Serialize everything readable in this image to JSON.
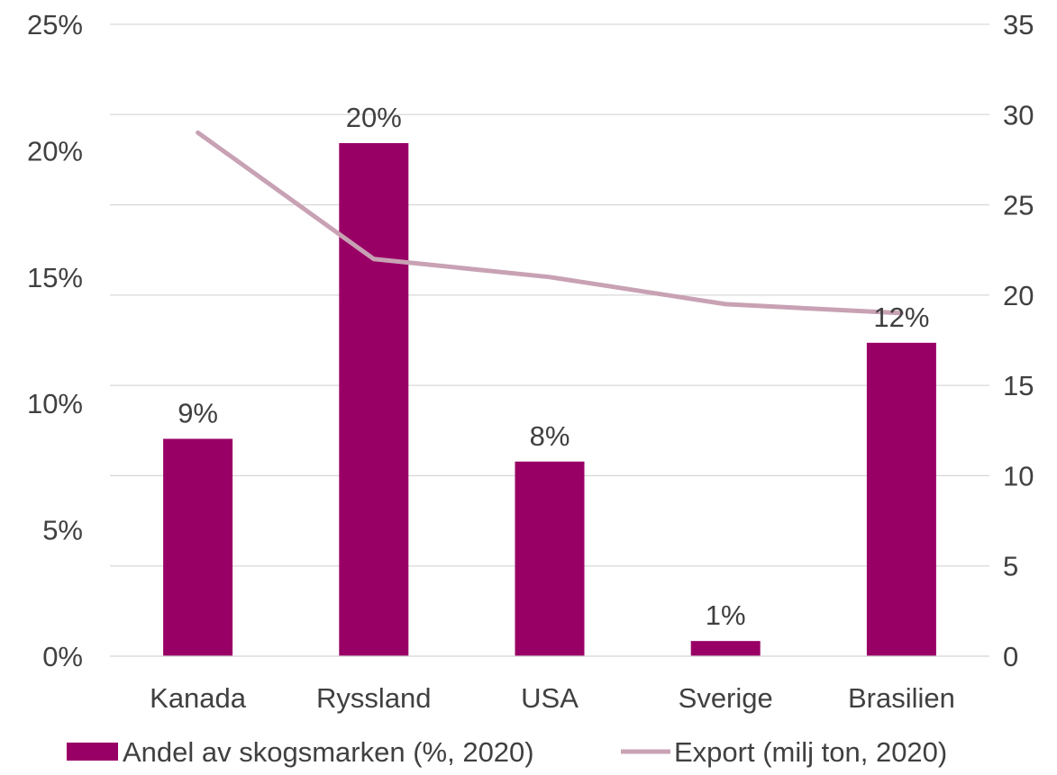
{
  "chart_data": {
    "type": "bar",
    "categories": [
      "Kanada",
      "Ryssland",
      "USA",
      "Sverige",
      "Brasilien"
    ],
    "series": [
      {
        "name": "Andel av skogsmarken (%, 2020)",
        "kind": "bar",
        "axis": "left",
        "values": [
          8.6,
          20.3,
          7.7,
          0.6,
          12.4
        ],
        "data_labels": [
          "9%",
          "20%",
          "8%",
          "1%",
          "12%"
        ],
        "color": "#990066"
      },
      {
        "name": "Export (milj ton, 2020)",
        "kind": "line",
        "axis": "right",
        "values": [
          29.0,
          22.0,
          21.0,
          19.5,
          19.0
        ],
        "color": "#C8A2B4"
      }
    ],
    "y_left": {
      "min": 0,
      "max": 25,
      "ticks": [
        0,
        5,
        10,
        15,
        20,
        25
      ],
      "tick_labels": [
        "0%",
        "5%",
        "10%",
        "15%",
        "20%",
        "25%"
      ]
    },
    "y_right": {
      "min": 0,
      "max": 35,
      "ticks": [
        0,
        5,
        10,
        15,
        20,
        25,
        30,
        35
      ],
      "tick_labels": [
        "0",
        "5",
        "10",
        "15",
        "20",
        "25",
        "30",
        "35"
      ]
    },
    "title": "",
    "xlabel": "",
    "ylabel": "",
    "grid": true,
    "gridline_color": "#D9D9D9",
    "legend_position": "bottom"
  }
}
